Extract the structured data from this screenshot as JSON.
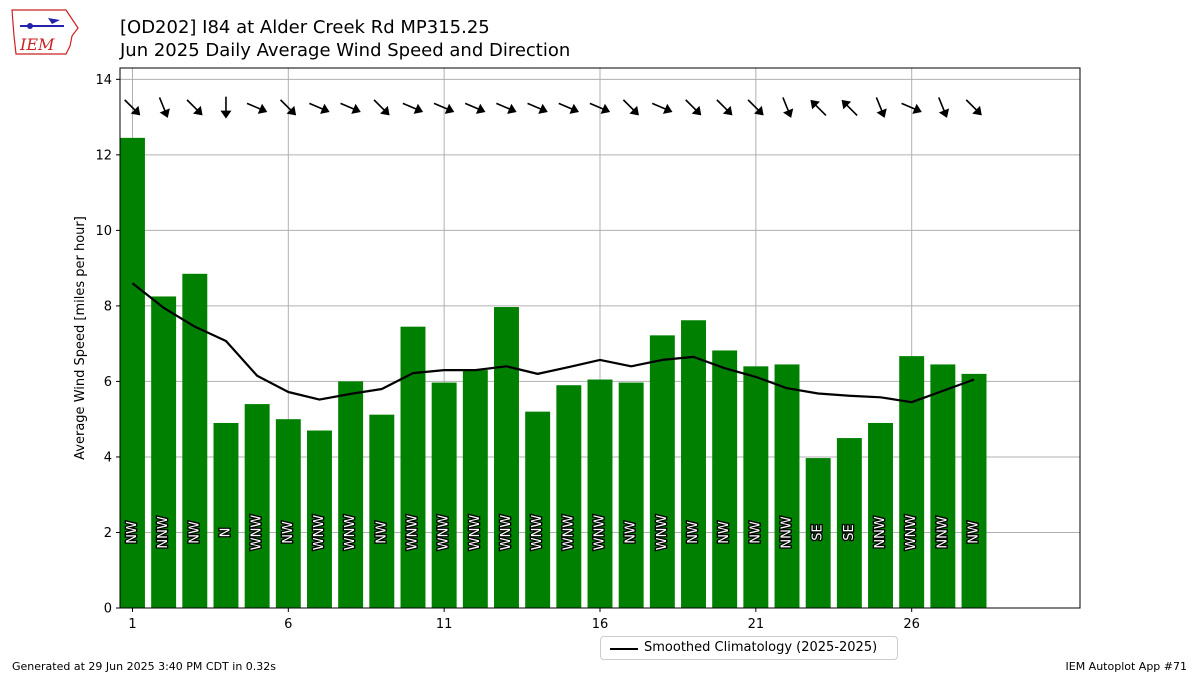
{
  "header": {
    "title_line1": "[OD202] I84 at Alder Creek Rd MP315.25",
    "title_line2": "Jun 2025 Daily Average Wind Speed and Direction"
  },
  "logo": {
    "text": "IEM",
    "icon": "iem-iowa-logo-icon"
  },
  "footer": {
    "generated": "Generated at 29 Jun 2025 3:40 PM CDT in 0.32s",
    "app": "IEM Autoplot App #71"
  },
  "legend": {
    "climatology_label": "Smoothed Climatology (2025-2025)"
  },
  "colors": {
    "bar": "#008000",
    "line": "#000000",
    "grid": "#b0b0b0"
  },
  "chart_data": {
    "type": "bar",
    "ylabel": "Average Wind Speed [miles per hour]",
    "xlim": [
      0.6,
      31.4
    ],
    "ylim": [
      0,
      14.3
    ],
    "xticks": [
      1,
      6,
      11,
      16,
      21,
      26
    ],
    "yticks": [
      0,
      2,
      4,
      6,
      8,
      10,
      12,
      14
    ],
    "grid": true,
    "legend_position": "bottom-center",
    "days": [
      1,
      2,
      3,
      4,
      5,
      6,
      7,
      8,
      9,
      10,
      11,
      12,
      13,
      14,
      15,
      16,
      17,
      18,
      19,
      20,
      21,
      22,
      23,
      24,
      25,
      26,
      27,
      28
    ],
    "speed": [
      12.45,
      8.25,
      8.85,
      4.9,
      5.4,
      5.0,
      4.7,
      6.0,
      5.12,
      7.45,
      5.97,
      6.3,
      7.97,
      5.2,
      5.9,
      6.05,
      5.97,
      7.22,
      7.62,
      6.82,
      6.4,
      6.45,
      3.97,
      4.5,
      4.9,
      6.67,
      6.45,
      6.2
    ],
    "direction_labels": [
      "NW",
      "NNW",
      "NW",
      "N",
      "WNW",
      "NW",
      "WNW",
      "WNW",
      "NW",
      "WNW",
      "WNW",
      "WNW",
      "WNW",
      "WNW",
      "WNW",
      "WNW",
      "NW",
      "WNW",
      "NW",
      "NW",
      "NW",
      "NNW",
      "SE",
      "SE",
      "NNW",
      "WNW",
      "NNW",
      "NW"
    ],
    "direction_degrees": [
      315,
      338,
      315,
      0,
      293,
      315,
      293,
      293,
      315,
      293,
      293,
      293,
      293,
      293,
      293,
      293,
      315,
      293,
      315,
      315,
      315,
      338,
      135,
      135,
      338,
      293,
      338,
      315
    ],
    "climatology": [
      8.6,
      7.95,
      7.45,
      7.07,
      6.15,
      5.72,
      5.52,
      5.67,
      5.8,
      6.22,
      6.3,
      6.3,
      6.4,
      6.2,
      6.38,
      6.57,
      6.4,
      6.57,
      6.65,
      6.35,
      6.12,
      5.82,
      5.68,
      5.62,
      5.58,
      5.45,
      5.75,
      6.05
    ]
  }
}
